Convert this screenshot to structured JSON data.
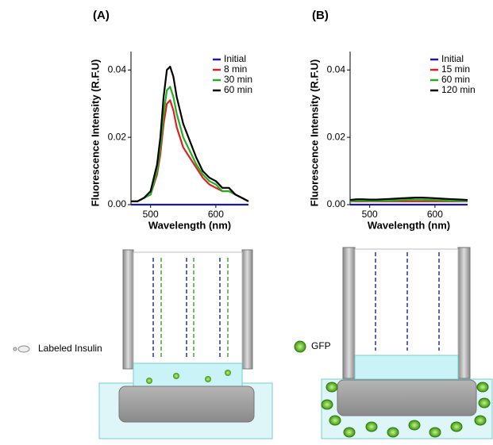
{
  "chart_data": [
    {
      "type": "line",
      "title": "(A)",
      "y_label": "Fluorescence Intensity (R.F.U)",
      "x_label": "Wavelength (nm)",
      "xlim": [
        470,
        650
      ],
      "xticks": [
        500,
        600
      ],
      "ylim": [
        0,
        0.045
      ],
      "yticks": [
        {
          "value": 0,
          "label": "0.00"
        },
        {
          "value": 0.02,
          "label": "0.02"
        },
        {
          "value": 0.04,
          "label": "0.04"
        }
      ],
      "x": [
        470,
        480,
        490,
        500,
        510,
        515,
        520,
        525,
        530,
        535,
        540,
        550,
        560,
        570,
        580,
        590,
        600,
        610,
        620,
        630,
        640,
        650
      ],
      "series": [
        {
          "name": "Initial",
          "color": "#1a1aa6",
          "values": [
            0,
            0,
            0,
            0,
            0,
            0,
            0,
            0,
            0,
            0,
            0,
            0,
            0,
            0,
            0,
            0,
            0,
            0,
            0,
            0,
            0,
            0
          ]
        },
        {
          "name": "8 min",
          "color": "#e02020",
          "values": [
            0.001,
            0.001,
            0.002,
            0.003,
            0.009,
            0.015,
            0.024,
            0.03,
            0.031,
            0.028,
            0.023,
            0.017,
            0.014,
            0.011,
            0.008,
            0.006,
            0.005,
            0.004,
            0.004,
            0.003,
            0.002,
            0.001
          ]
        },
        {
          "name": "30 min",
          "color": "#22b022",
          "values": [
            0.001,
            0.001,
            0.002,
            0.003,
            0.01,
            0.017,
            0.027,
            0.034,
            0.035,
            0.032,
            0.027,
            0.02,
            0.016,
            0.012,
            0.009,
            0.007,
            0.006,
            0.004,
            0.004,
            0.003,
            0.002,
            0.001
          ]
        },
        {
          "name": "60 min",
          "color": "#000000",
          "values": [
            0.001,
            0.001,
            0.002,
            0.004,
            0.012,
            0.02,
            0.032,
            0.04,
            0.041,
            0.038,
            0.032,
            0.024,
            0.019,
            0.014,
            0.01,
            0.008,
            0.007,
            0.005,
            0.005,
            0.003,
            0.002,
            0.001
          ]
        }
      ]
    },
    {
      "type": "line",
      "title": "(B)",
      "y_label": "Fluorescence Intensity (R.F.U)",
      "x_label": "Wavelength (nm)",
      "xlim": [
        470,
        650
      ],
      "xticks": [
        500,
        600
      ],
      "ylim": [
        0,
        0.045
      ],
      "yticks": [
        {
          "value": 0,
          "label": "0.00"
        },
        {
          "value": 0.02,
          "label": "0.02"
        },
        {
          "value": 0.04,
          "label": "0.04"
        }
      ],
      "x": [
        470,
        480,
        490,
        500,
        510,
        520,
        530,
        540,
        550,
        560,
        570,
        580,
        590,
        600,
        610,
        620,
        630,
        640,
        650
      ],
      "series": [
        {
          "name": "Initial",
          "color": "#1a1aa6",
          "values": [
            0,
            0,
            0,
            0,
            0,
            0,
            0,
            0,
            0,
            0,
            0,
            0,
            0,
            0,
            0,
            0,
            0,
            0,
            0
          ]
        },
        {
          "name": "15 min",
          "color": "#e02020",
          "values": [
            0.001,
            0.001,
            0.001,
            0.001,
            0.001,
            0.001,
            0.001,
            0.001,
            0.001,
            0.001,
            0.001,
            0.001,
            0.001,
            0.001,
            0.001,
            0.001,
            0.001,
            0.001,
            0.001
          ]
        },
        {
          "name": "60 min",
          "color": "#22b022",
          "values": [
            0.001,
            0.0012,
            0.0012,
            0.0011,
            0.0011,
            0.0012,
            0.0012,
            0.0013,
            0.0014,
            0.0015,
            0.0015,
            0.0015,
            0.0014,
            0.0014,
            0.0013,
            0.0012,
            0.0012,
            0.0011,
            0.001
          ]
        },
        {
          "name": "120 min",
          "color": "#000000",
          "values": [
            0.0014,
            0.0016,
            0.0016,
            0.0015,
            0.0015,
            0.0016,
            0.0017,
            0.0018,
            0.0019,
            0.002,
            0.0021,
            0.0021,
            0.002,
            0.0019,
            0.0018,
            0.0017,
            0.0016,
            0.0015,
            0.0014
          ]
        }
      ]
    }
  ],
  "diagram": {
    "labels": [
      "Labeled Insulin",
      "GFP"
    ]
  }
}
